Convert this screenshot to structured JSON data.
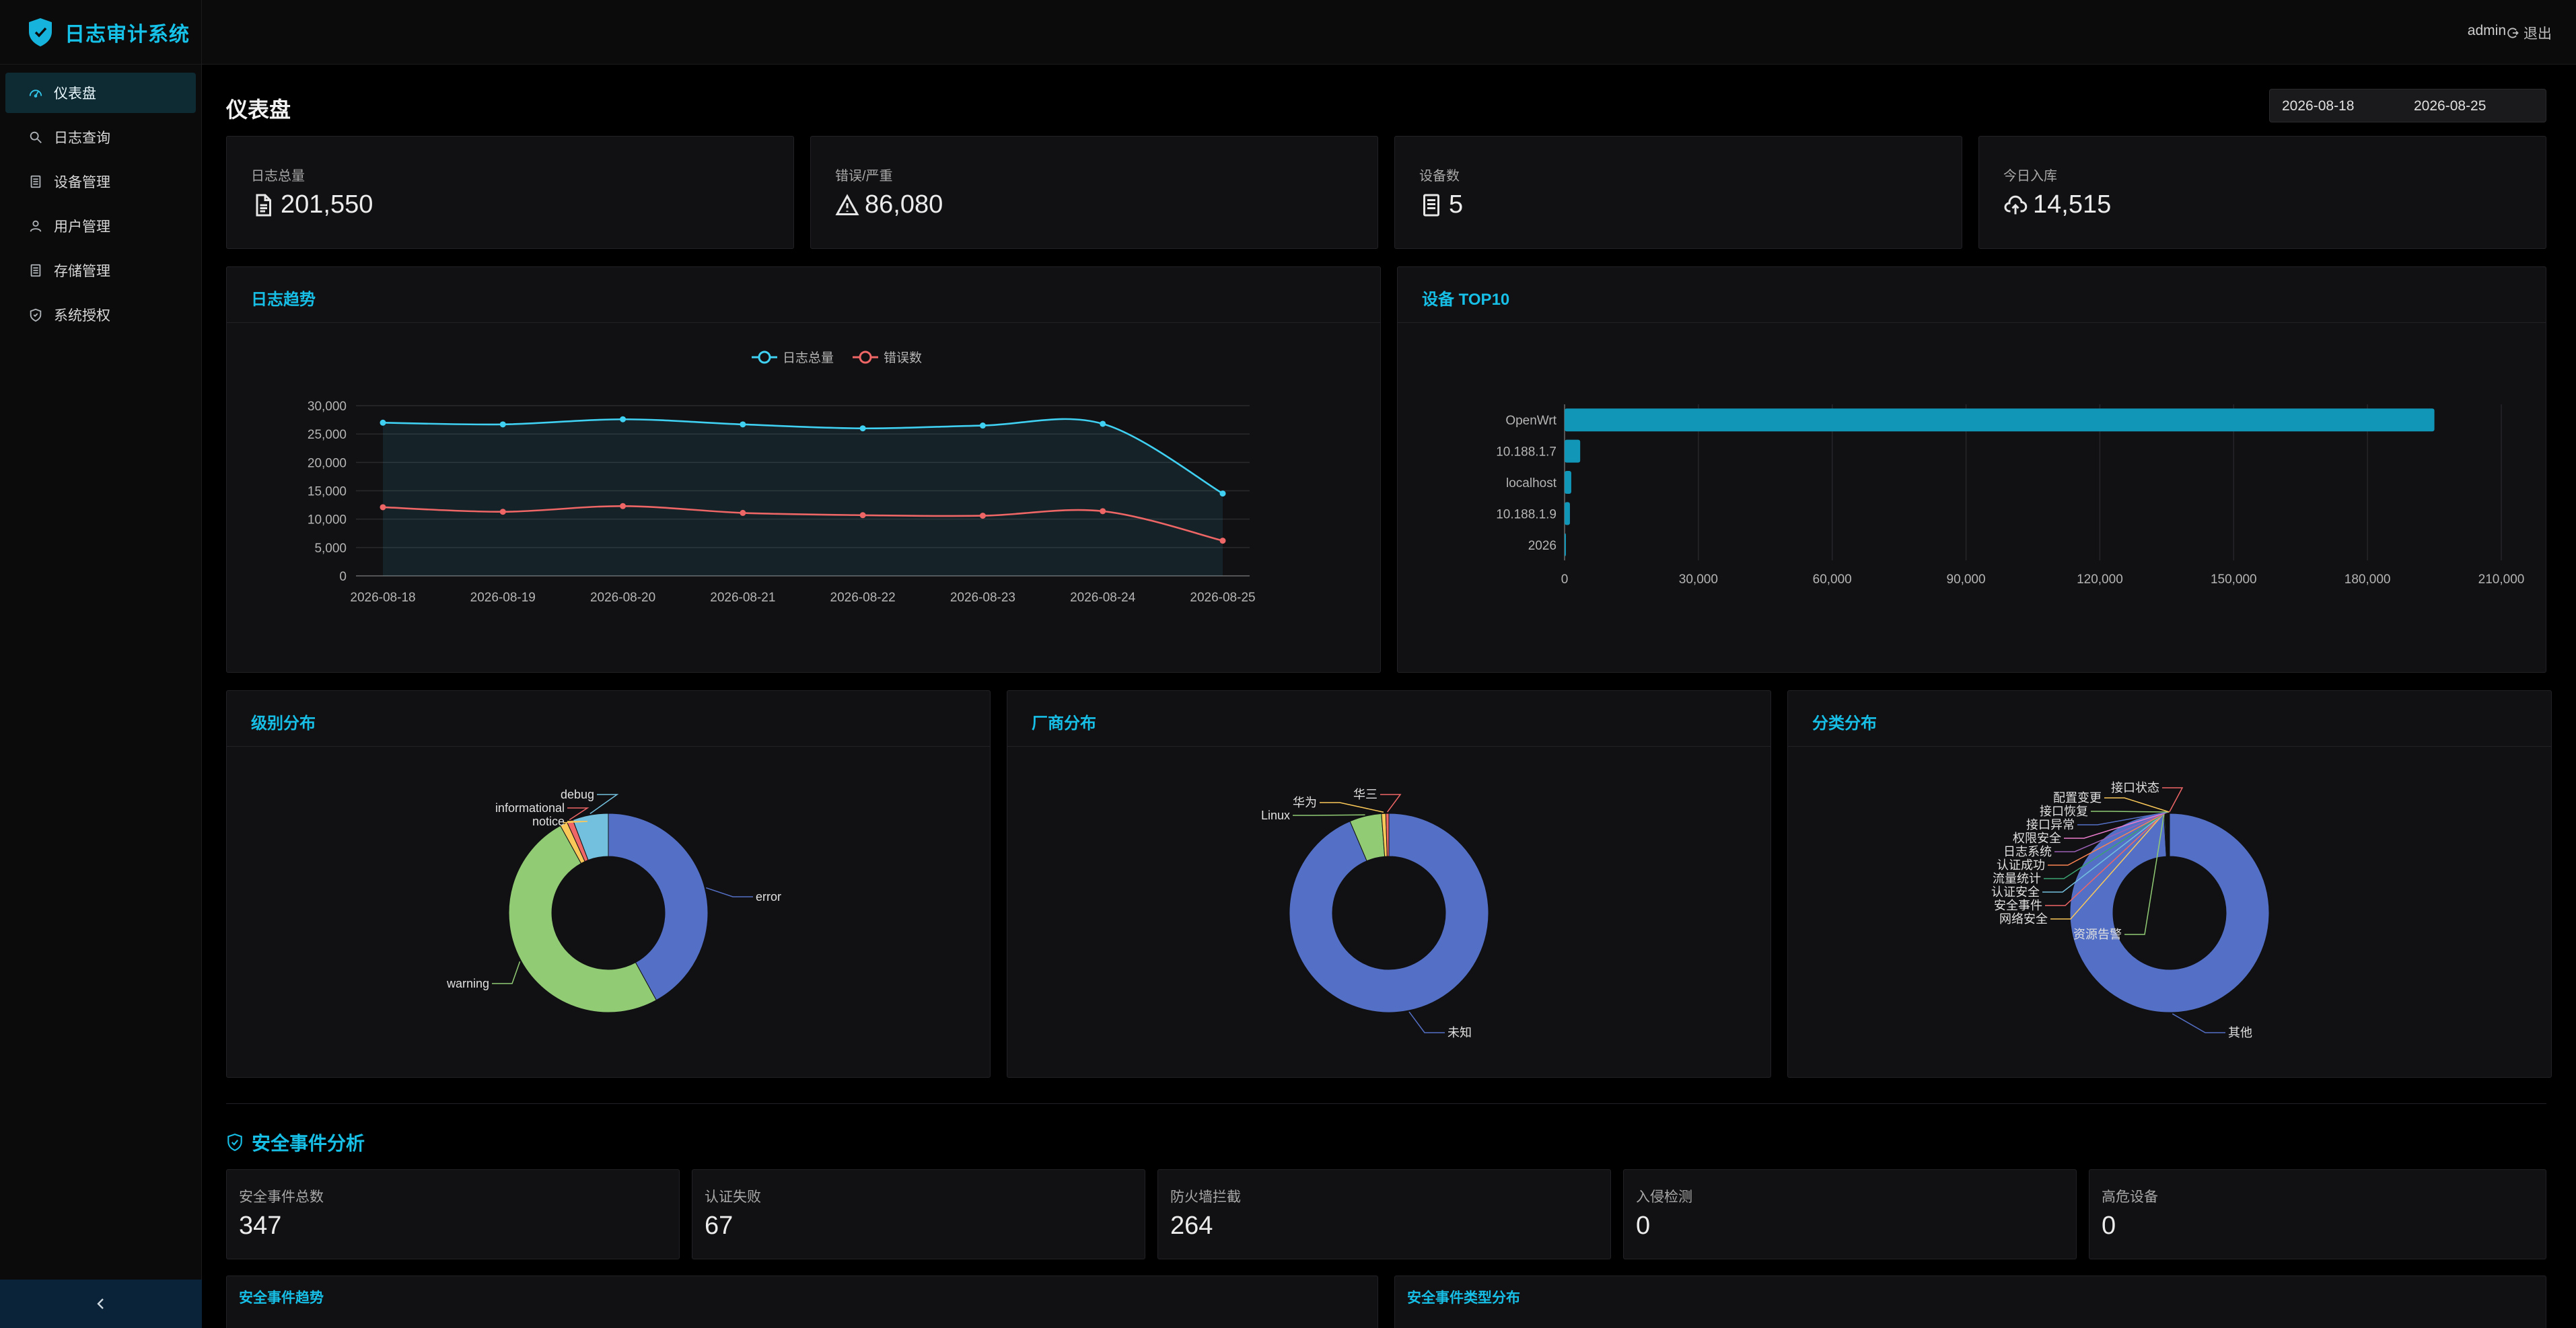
{
  "app": {
    "title": "日志审计系统"
  },
  "sidebar": {
    "items": [
      {
        "label": "仪表盘",
        "icon": "dashboard-icon",
        "active": true
      },
      {
        "label": "日志查询",
        "icon": "search-icon"
      },
      {
        "label": "设备管理",
        "icon": "device-icon"
      },
      {
        "label": "用户管理",
        "icon": "user-icon"
      },
      {
        "label": "存储管理",
        "icon": "storage-icon"
      },
      {
        "label": "系统授权",
        "icon": "shield-icon"
      }
    ],
    "collapse_icon": "chevron-left-icon"
  },
  "header": {
    "user": "admin",
    "logout_label": "退出"
  },
  "page": {
    "title": "仪表盘",
    "date_start": "2026-08-18",
    "date_end": "2026-08-25"
  },
  "stats": [
    {
      "label": "日志总量",
      "value": "201,550",
      "icon": "document-icon"
    },
    {
      "label": "错误/严重",
      "value": "86,080",
      "icon": "warning-icon"
    },
    {
      "label": "设备数",
      "value": "5",
      "icon": "server-icon"
    },
    {
      "label": "今日入库",
      "value": "14,515",
      "icon": "cloud-upload-icon"
    }
  ],
  "panels": {
    "trend_title": "日志趋势",
    "top10_title": "设备 TOP10",
    "level_title": "级别分布",
    "vendor_title": "厂商分布",
    "category_title": "分类分布"
  },
  "security": {
    "title": "安全事件分析",
    "stats": [
      {
        "label": "安全事件总数",
        "value": "347"
      },
      {
        "label": "认证失败",
        "value": "67"
      },
      {
        "label": "防火墙拦截",
        "value": "264"
      },
      {
        "label": "入侵检测",
        "value": "0"
      },
      {
        "label": "高危设备",
        "value": "0"
      }
    ],
    "trend_title": "安全事件趋势",
    "type_title": "安全事件类型分布"
  },
  "chart_data": [
    {
      "type": "line",
      "title": "日志趋势",
      "x": [
        "2026-08-18",
        "2026-08-19",
        "2026-08-20",
        "2026-08-21",
        "2026-08-22",
        "2026-08-23",
        "2026-08-24",
        "2026-08-25"
      ],
      "ylim": [
        0,
        30000
      ],
      "yticks": [
        "0",
        "5,000",
        "10,000",
        "15,000",
        "20,000",
        "25,000",
        "30,000"
      ],
      "legend": "top-center",
      "series": [
        {
          "name": "日志总量",
          "color": "#3fd0f2",
          "values": [
            27000,
            26700,
            27600,
            26700,
            26000,
            26500,
            26800,
            14515
          ]
        },
        {
          "name": "错误数",
          "color": "#ee6666",
          "values": [
            12100,
            11300,
            12300,
            11100,
            10700,
            10600,
            11400,
            6200
          ]
        }
      ]
    },
    {
      "type": "bar",
      "orientation": "horizontal",
      "title": "设备 TOP10",
      "categories": [
        "OpenWrt",
        "10.188.1.7",
        "localhost",
        "10.188.1.9",
        "2026"
      ],
      "values": [
        195000,
        3500,
        1500,
        1200,
        200
      ],
      "xlim": [
        0,
        210000
      ],
      "xticks": [
        "0",
        "30,000",
        "60,000",
        "90,000",
        "120,000",
        "150,000",
        "180,000",
        "210,000"
      ],
      "color": "#1296b8"
    },
    {
      "type": "pie",
      "title": "级别分布",
      "labels": [
        "error",
        "warning",
        "notice",
        "informational",
        "debug"
      ],
      "values": [
        42,
        50,
        1.2,
        1.0,
        5.8
      ],
      "colors": [
        "#5470c6",
        "#91cc75",
        "#fac858",
        "#ee6666",
        "#73c0de"
      ]
    },
    {
      "type": "pie",
      "title": "厂商分布",
      "labels": [
        "未知",
        "Linux",
        "华为",
        "华三"
      ],
      "values": [
        93.6,
        5.2,
        0.7,
        0.5
      ],
      "colors": [
        "#5470c6",
        "#91cc75",
        "#fac858",
        "#ee6666"
      ]
    },
    {
      "type": "pie",
      "title": "分类分布",
      "labels": [
        "其他",
        "资源告警",
        "网络安全",
        "安全事件",
        "认证安全",
        "流量统计",
        "认证成功",
        "日志系统",
        "权限安全",
        "接口异常",
        "接口恢复",
        "配置变更",
        "接口状态"
      ],
      "values": [
        99.0,
        0.15,
        0.08,
        0.08,
        0.08,
        0.08,
        0.08,
        0.08,
        0.08,
        0.06,
        0.04,
        0.04,
        0.05
      ],
      "colors": [
        "#5470c6",
        "#91cc75",
        "#fac858",
        "#ee6666",
        "#73c0de",
        "#3ba272",
        "#fc8452",
        "#9a60b4",
        "#ea7ccc",
        "#5470c6",
        "#91cc75",
        "#fac858",
        "#ee6666"
      ]
    }
  ]
}
